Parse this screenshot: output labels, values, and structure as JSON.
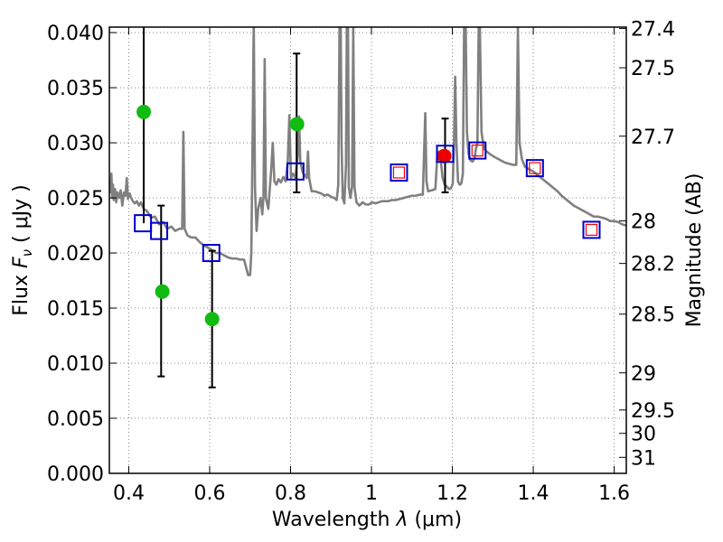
{
  "chart_data": {
    "type": "scatter",
    "xlabel_text": "Wavelength",
    "xlabel_symbol": "λ",
    "xlabel_unit": "(μm)",
    "ylabel_text": "Flux",
    "ylabel_symbol": "F",
    "ylabel_subscript": "ν",
    "ylabel_unit": "( μJy )",
    "y2label": "Magnitude (AB)",
    "xlim": [
      0.352,
      1.63
    ],
    "ylim": [
      0.0,
      0.0405
    ],
    "grid": true,
    "x_ticks": [
      {
        "v": 0.4,
        "label": "0.4"
      },
      {
        "v": 0.6,
        "label": "0.6"
      },
      {
        "v": 0.8,
        "label": "0.8"
      },
      {
        "v": 1.0,
        "label": "1"
      },
      {
        "v": 1.2,
        "label": "1.2"
      },
      {
        "v": 1.4,
        "label": "1.4"
      },
      {
        "v": 1.6,
        "label": "1.6"
      }
    ],
    "y_ticks": [
      {
        "v": 0.0,
        "label": "0.000"
      },
      {
        "v": 0.005,
        "label": "0.005"
      },
      {
        "v": 0.01,
        "label": "0.010"
      },
      {
        "v": 0.015,
        "label": "0.015"
      },
      {
        "v": 0.02,
        "label": "0.020"
      },
      {
        "v": 0.025,
        "label": "0.025"
      },
      {
        "v": 0.03,
        "label": "0.030"
      },
      {
        "v": 0.035,
        "label": "0.035"
      },
      {
        "v": 0.04,
        "label": "0.040"
      }
    ],
    "y2_ticks": [
      {
        "flux": 0.04037,
        "label": "27.4"
      },
      {
        "flux": 0.03681,
        "label": "27.5"
      },
      {
        "flux": 0.0306,
        "label": "27.7"
      },
      {
        "flux": 0.02291,
        "label": "28"
      },
      {
        "flux": 0.01905,
        "label": "28.2"
      },
      {
        "flux": 0.01445,
        "label": "28.5"
      },
      {
        "flux": 0.00912,
        "label": "29"
      },
      {
        "flux": 0.00575,
        "label": "29.5"
      },
      {
        "flux": 0.00363,
        "label": "30"
      },
      {
        "flux": 0.00145,
        "label": "31"
      }
    ],
    "series": [
      {
        "kind": "line",
        "color": "#808080",
        "points": [
          [
            0.352,
            0.0265
          ],
          [
            0.355,
            0.0255
          ],
          [
            0.357,
            0.0272
          ],
          [
            0.359,
            0.025
          ],
          [
            0.361,
            0.0262
          ],
          [
            0.363,
            0.0248
          ],
          [
            0.366,
            0.0258
          ],
          [
            0.369,
            0.0246
          ],
          [
            0.372,
            0.0255
          ],
          [
            0.376,
            0.025
          ],
          [
            0.38,
            0.0257
          ],
          [
            0.384,
            0.0243
          ],
          [
            0.388,
            0.0255
          ],
          [
            0.392,
            0.0252
          ],
          [
            0.395,
            0.0268
          ],
          [
            0.398,
            0.0249
          ],
          [
            0.402,
            0.0254
          ],
          [
            0.406,
            0.025
          ],
          [
            0.41,
            0.0247
          ],
          [
            0.415,
            0.0245
          ],
          [
            0.42,
            0.0247
          ],
          [
            0.425,
            0.0243
          ],
          [
            0.43,
            0.0246
          ],
          [
            0.437,
            0.024
          ],
          [
            0.445,
            0.0238
          ],
          [
            0.455,
            0.0232
          ],
          [
            0.465,
            0.0233
          ],
          [
            0.475,
            0.0226
          ],
          [
            0.485,
            0.0228
          ],
          [
            0.495,
            0.0222
          ],
          [
            0.505,
            0.0224
          ],
          [
            0.515,
            0.022
          ],
          [
            0.525,
            0.0222
          ],
          [
            0.532,
            0.0222
          ],
          [
            0.535,
            0.031
          ],
          [
            0.538,
            0.0222
          ],
          [
            0.545,
            0.0216
          ],
          [
            0.555,
            0.0214
          ],
          [
            0.565,
            0.0214
          ],
          [
            0.575,
            0.021
          ],
          [
            0.585,
            0.0207
          ],
          [
            0.595,
            0.0205
          ],
          [
            0.605,
            0.0203
          ],
          [
            0.615,
            0.02
          ],
          [
            0.625,
            0.02
          ],
          [
            0.635,
            0.0198
          ],
          [
            0.645,
            0.0196
          ],
          [
            0.655,
            0.0195
          ],
          [
            0.665,
            0.0195
          ],
          [
            0.675,
            0.0194
          ],
          [
            0.685,
            0.0194
          ],
          [
            0.695,
            0.018
          ],
          [
            0.7,
            0.018
          ],
          [
            0.703,
            0.02
          ],
          [
            0.706,
            0.03
          ],
          [
            0.709,
            0.041
          ],
          [
            0.712,
            0.026
          ],
          [
            0.716,
            0.022
          ],
          [
            0.72,
            0.024
          ],
          [
            0.726,
            0.025
          ],
          [
            0.73,
            0.0235
          ],
          [
            0.733,
            0.025
          ],
          [
            0.736,
            0.0376
          ],
          [
            0.739,
            0.025
          ],
          [
            0.745,
            0.024
          ],
          [
            0.752,
            0.0275
          ],
          [
            0.756,
            0.03
          ],
          [
            0.76,
            0.0265
          ],
          [
            0.765,
            0.0262
          ],
          [
            0.77,
            0.0267
          ],
          [
            0.776,
            0.0264
          ],
          [
            0.782,
            0.0269
          ],
          [
            0.788,
            0.0265
          ],
          [
            0.793,
            0.0282
          ],
          [
            0.797,
            0.0325
          ],
          [
            0.801,
            0.0268
          ],
          [
            0.806,
            0.0272
          ],
          [
            0.812,
            0.0268
          ],
          [
            0.818,
            0.029
          ],
          [
            0.821,
            0.0324
          ],
          [
            0.824,
            0.0283
          ],
          [
            0.83,
            0.0273
          ],
          [
            0.836,
            0.027
          ],
          [
            0.84,
            0.0268
          ],
          [
            0.843,
            0.0292
          ],
          [
            0.846,
            0.0268
          ],
          [
            0.852,
            0.0256
          ],
          [
            0.86,
            0.0256
          ],
          [
            0.868,
            0.0255
          ],
          [
            0.876,
            0.0254
          ],
          [
            0.884,
            0.0252
          ],
          [
            0.892,
            0.0253
          ],
          [
            0.9,
            0.0251
          ],
          [
            0.908,
            0.025
          ],
          [
            0.914,
            0.0248
          ],
          [
            0.918,
            0.0262
          ],
          [
            0.921,
            0.0405
          ],
          [
            0.924,
            0.0405
          ],
          [
            0.926,
            0.03
          ],
          [
            0.929,
            0.025
          ],
          [
            0.933,
            0.0245
          ],
          [
            0.937,
            0.028
          ],
          [
            0.939,
            0.0405
          ],
          [
            0.942,
            0.0405
          ],
          [
            0.944,
            0.026
          ],
          [
            0.948,
            0.025
          ],
          [
            0.952,
            0.026
          ],
          [
            0.955,
            0.0405
          ],
          [
            0.958,
            0.026
          ],
          [
            0.963,
            0.0246
          ],
          [
            0.97,
            0.0243
          ],
          [
            0.978,
            0.0246
          ],
          [
            0.986,
            0.0244
          ],
          [
            0.994,
            0.0244
          ],
          [
            1.002,
            0.0246
          ],
          [
            1.01,
            0.0245
          ],
          [
            1.018,
            0.0246
          ],
          [
            1.026,
            0.0247
          ],
          [
            1.034,
            0.0247
          ],
          [
            1.042,
            0.0247
          ],
          [
            1.05,
            0.0248
          ],
          [
            1.06,
            0.0248
          ],
          [
            1.07,
            0.0249
          ],
          [
            1.08,
            0.025
          ],
          [
            1.09,
            0.0251
          ],
          [
            1.1,
            0.0252
          ],
          [
            1.11,
            0.0252
          ],
          [
            1.12,
            0.0253
          ],
          [
            1.127,
            0.0253
          ],
          [
            1.13,
            0.029
          ],
          [
            1.133,
            0.0327
          ],
          [
            1.136,
            0.0265
          ],
          [
            1.14,
            0.0256
          ],
          [
            1.15,
            0.0257
          ],
          [
            1.158,
            0.0258
          ],
          [
            1.163,
            0.029
          ],
          [
            1.167,
            0.0292
          ],
          [
            1.171,
            0.0285
          ],
          [
            1.176,
            0.0268
          ],
          [
            1.181,
            0.0262
          ],
          [
            1.187,
            0.026
          ],
          [
            1.192,
            0.0258
          ],
          [
            1.197,
            0.0259
          ],
          [
            1.201,
            0.0263
          ],
          [
            1.204,
            0.03
          ],
          [
            1.207,
            0.036
          ],
          [
            1.21,
            0.03
          ],
          [
            1.214,
            0.0265
          ],
          [
            1.218,
            0.0262
          ],
          [
            1.222,
            0.0263
          ],
          [
            1.226,
            0.0272
          ],
          [
            1.229,
            0.0405
          ],
          [
            1.233,
            0.0405
          ],
          [
            1.236,
            0.031
          ],
          [
            1.24,
            0.029
          ],
          [
            1.245,
            0.0284
          ],
          [
            1.25,
            0.0283
          ],
          [
            1.255,
            0.0286
          ],
          [
            1.258,
            0.0294
          ],
          [
            1.262,
            0.03
          ],
          [
            1.265,
            0.0405
          ],
          [
            1.268,
            0.0405
          ],
          [
            1.272,
            0.031
          ],
          [
            1.278,
            0.0295
          ],
          [
            1.285,
            0.0292
          ],
          [
            1.292,
            0.029
          ],
          [
            1.3,
            0.0288
          ],
          [
            1.31,
            0.0286
          ],
          [
            1.32,
            0.0284
          ],
          [
            1.33,
            0.0282
          ],
          [
            1.34,
            0.0281
          ],
          [
            1.35,
            0.028
          ],
          [
            1.358,
            0.028
          ],
          [
            1.362,
            0.0405
          ],
          [
            1.366,
            0.03
          ],
          [
            1.372,
            0.0285
          ],
          [
            1.38,
            0.0278
          ],
          [
            1.39,
            0.0276
          ],
          [
            1.4,
            0.0274
          ],
          [
            1.41,
            0.0271
          ],
          [
            1.42,
            0.0268
          ],
          [
            1.43,
            0.0265
          ],
          [
            1.44,
            0.0262
          ],
          [
            1.45,
            0.0259
          ],
          [
            1.46,
            0.0256
          ],
          [
            1.47,
            0.0252
          ],
          [
            1.48,
            0.0249
          ],
          [
            1.49,
            0.0246
          ],
          [
            1.5,
            0.0243
          ],
          [
            1.51,
            0.0241
          ],
          [
            1.52,
            0.0239
          ],
          [
            1.53,
            0.0237
          ],
          [
            1.54,
            0.0235
          ],
          [
            1.55,
            0.0233
          ],
          [
            1.56,
            0.0233
          ],
          [
            1.57,
            0.0232
          ],
          [
            1.58,
            0.0231
          ],
          [
            1.59,
            0.0229
          ],
          [
            1.6,
            0.0229
          ],
          [
            1.61,
            0.0228
          ],
          [
            1.62,
            0.0226
          ],
          [
            1.63,
            0.0225
          ]
        ]
      },
      {
        "kind": "points",
        "marker": "circle",
        "color": "#11bb11",
        "points": [
          {
            "x": 0.437,
            "y": 0.0328
          },
          {
            "x": 0.483,
            "y": 0.0165
          },
          {
            "x": 0.606,
            "y": 0.014
          },
          {
            "x": 0.816,
            "y": 0.0317
          }
        ]
      },
      {
        "kind": "points",
        "marker": "circle",
        "color": "#ee0000",
        "points": [
          {
            "x": 1.18,
            "y": 0.0288
          }
        ]
      },
      {
        "kind": "points",
        "marker": "square",
        "color": "#0000cc",
        "inner_color": "#ee0000",
        "points": [
          {
            "x": 0.435,
            "y": 0.0227,
            "inner": false
          },
          {
            "x": 0.475,
            "y": 0.022,
            "inner": false
          },
          {
            "x": 0.604,
            "y": 0.02,
            "inner": false
          },
          {
            "x": 0.812,
            "y": 0.0274,
            "inner": false
          },
          {
            "x": 1.068,
            "y": 0.0273,
            "inner": true
          },
          {
            "x": 1.182,
            "y": 0.029,
            "inner": false
          },
          {
            "x": 1.262,
            "y": 0.0293,
            "inner": true
          },
          {
            "x": 1.404,
            "y": 0.0277,
            "inner": true
          },
          {
            "x": 1.544,
            "y": 0.0221,
            "inner": true
          }
        ]
      }
    ],
    "errorbars": [
      {
        "x": 0.437,
        "ylow": 0.0227,
        "yhigh": 0.0405,
        "cap_low": false,
        "cap_high": false
      },
      {
        "x": 0.48,
        "ylow": 0.0088,
        "yhigh": 0.0243,
        "cap_low": true,
        "cap_high": true
      },
      {
        "x": 0.606,
        "ylow": 0.0078,
        "yhigh": 0.0202,
        "cap_low": true,
        "cap_high": true
      },
      {
        "x": 0.815,
        "ylow": 0.0255,
        "yhigh": 0.0381,
        "cap_low": true,
        "cap_high": true
      },
      {
        "x": 1.182,
        "ylow": 0.0255,
        "yhigh": 0.0322,
        "cap_low": true,
        "cap_high": true
      }
    ]
  }
}
